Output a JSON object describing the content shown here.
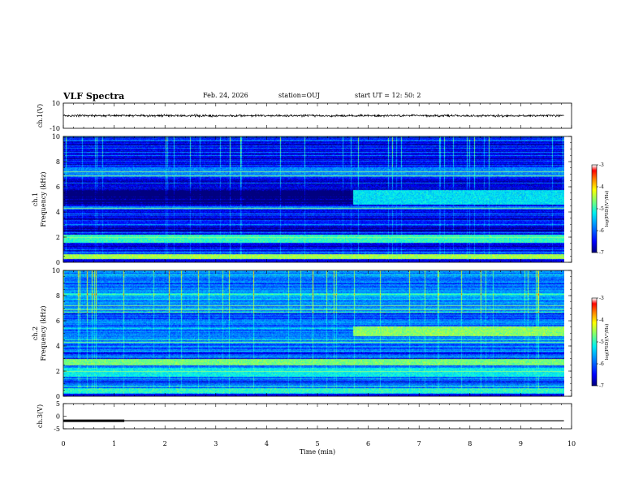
{
  "header": {
    "title": "VLF Spectra",
    "date": "Feb. 24, 2026",
    "station": "station=OUJ",
    "start": "start  UT  =   12: 50: 2"
  },
  "chart_data": [
    {
      "id": "ch1_waveform",
      "type": "line",
      "ylabel": "ch.1(V)",
      "ylim": [
        -10,
        10
      ],
      "y_tick_labels": [
        "10",
        "-10"
      ],
      "mean_value": 0,
      "xlim": [
        0,
        10
      ]
    },
    {
      "id": "ch1_spectrogram",
      "type": "heatmap",
      "ylabel_line1": "ch.1",
      "ylabel_line2": "Frequency (kHz)",
      "ylim": [
        0,
        10
      ],
      "y_ticks": [
        0,
        2,
        4,
        6,
        8,
        10
      ],
      "y_tick_labels": [
        "0",
        "2",
        "4",
        "6",
        "8",
        "10"
      ],
      "xlim": [
        0,
        10
      ],
      "colorbar_label": "log(PSD)(V²/Hz)",
      "colorbar_range": [
        -7,
        -3
      ],
      "colorbar_ticks": [
        -7,
        -6,
        -5,
        -4,
        -3
      ],
      "colorbar_tick_labels": [
        "-7",
        "-6",
        "-5",
        "-4",
        "-3"
      ],
      "bright_bands_khz": [
        {
          "from": 1.6,
          "to": 2.2,
          "level": -5.0
        },
        {
          "from": 0.3,
          "to": 0.7,
          "level": -4.5
        },
        {
          "from": 4.2,
          "to": 4.5,
          "level": -5.8
        },
        {
          "from": 6.8,
          "to": 7.6,
          "level": -5.8
        }
      ],
      "enhancement_after_min": 5.7,
      "enhancement_band_khz": [
        4.6,
        5.8
      ]
    },
    {
      "id": "ch2_spectrogram",
      "type": "heatmap",
      "ylabel_line1": "ch.2",
      "ylabel_line2": "Frequency (kHz)",
      "ylim": [
        0,
        10
      ],
      "y_ticks": [
        0,
        2,
        4,
        6,
        8,
        10
      ],
      "y_tick_labels": [
        "0",
        "2",
        "4",
        "6",
        "8",
        "10"
      ],
      "xlim": [
        0,
        10
      ],
      "colorbar_label": "log(PSD)(V²/Hz)",
      "colorbar_range": [
        -7,
        -3
      ],
      "colorbar_ticks": [
        -7,
        -6,
        -5,
        -4,
        -3
      ],
      "colorbar_tick_labels": [
        "-7",
        "-6",
        "-5",
        "-4",
        "-3"
      ],
      "bright_bands_khz": [
        {
          "from": 1.6,
          "to": 2.2,
          "level": -5.2
        },
        {
          "from": 2.5,
          "to": 3.0,
          "level": -4.7
        },
        {
          "from": 0.3,
          "to": 0.7,
          "level": -5.0
        }
      ],
      "enhancement_after_min": 5.7,
      "enhancement_band_khz": [
        4.8,
        5.6
      ]
    },
    {
      "id": "ch3_level",
      "type": "line",
      "ylabel": "ch.3(V)",
      "ylim": [
        -5,
        5
      ],
      "y_tick_labels": [
        "5",
        "0",
        "-5"
      ],
      "level_value": -1.8,
      "thick_segment_until_min": 1.2,
      "xlim": [
        0,
        10
      ]
    }
  ],
  "x_axis": {
    "label": "Time (min)",
    "ticks": [
      0,
      1,
      2,
      3,
      4,
      5,
      6,
      7,
      8,
      9,
      10
    ],
    "tick_labels": [
      "0",
      "1",
      "2",
      "3",
      "4",
      "5",
      "6",
      "7",
      "8",
      "9",
      "10"
    ],
    "data_end_min": 9.85
  },
  "colormap": [
    "#000080",
    "#0000ff",
    "#00a0ff",
    "#00ffff",
    "#80ff80",
    "#ffff00",
    "#ff8000",
    "#ff0000",
    "#ffffff"
  ]
}
